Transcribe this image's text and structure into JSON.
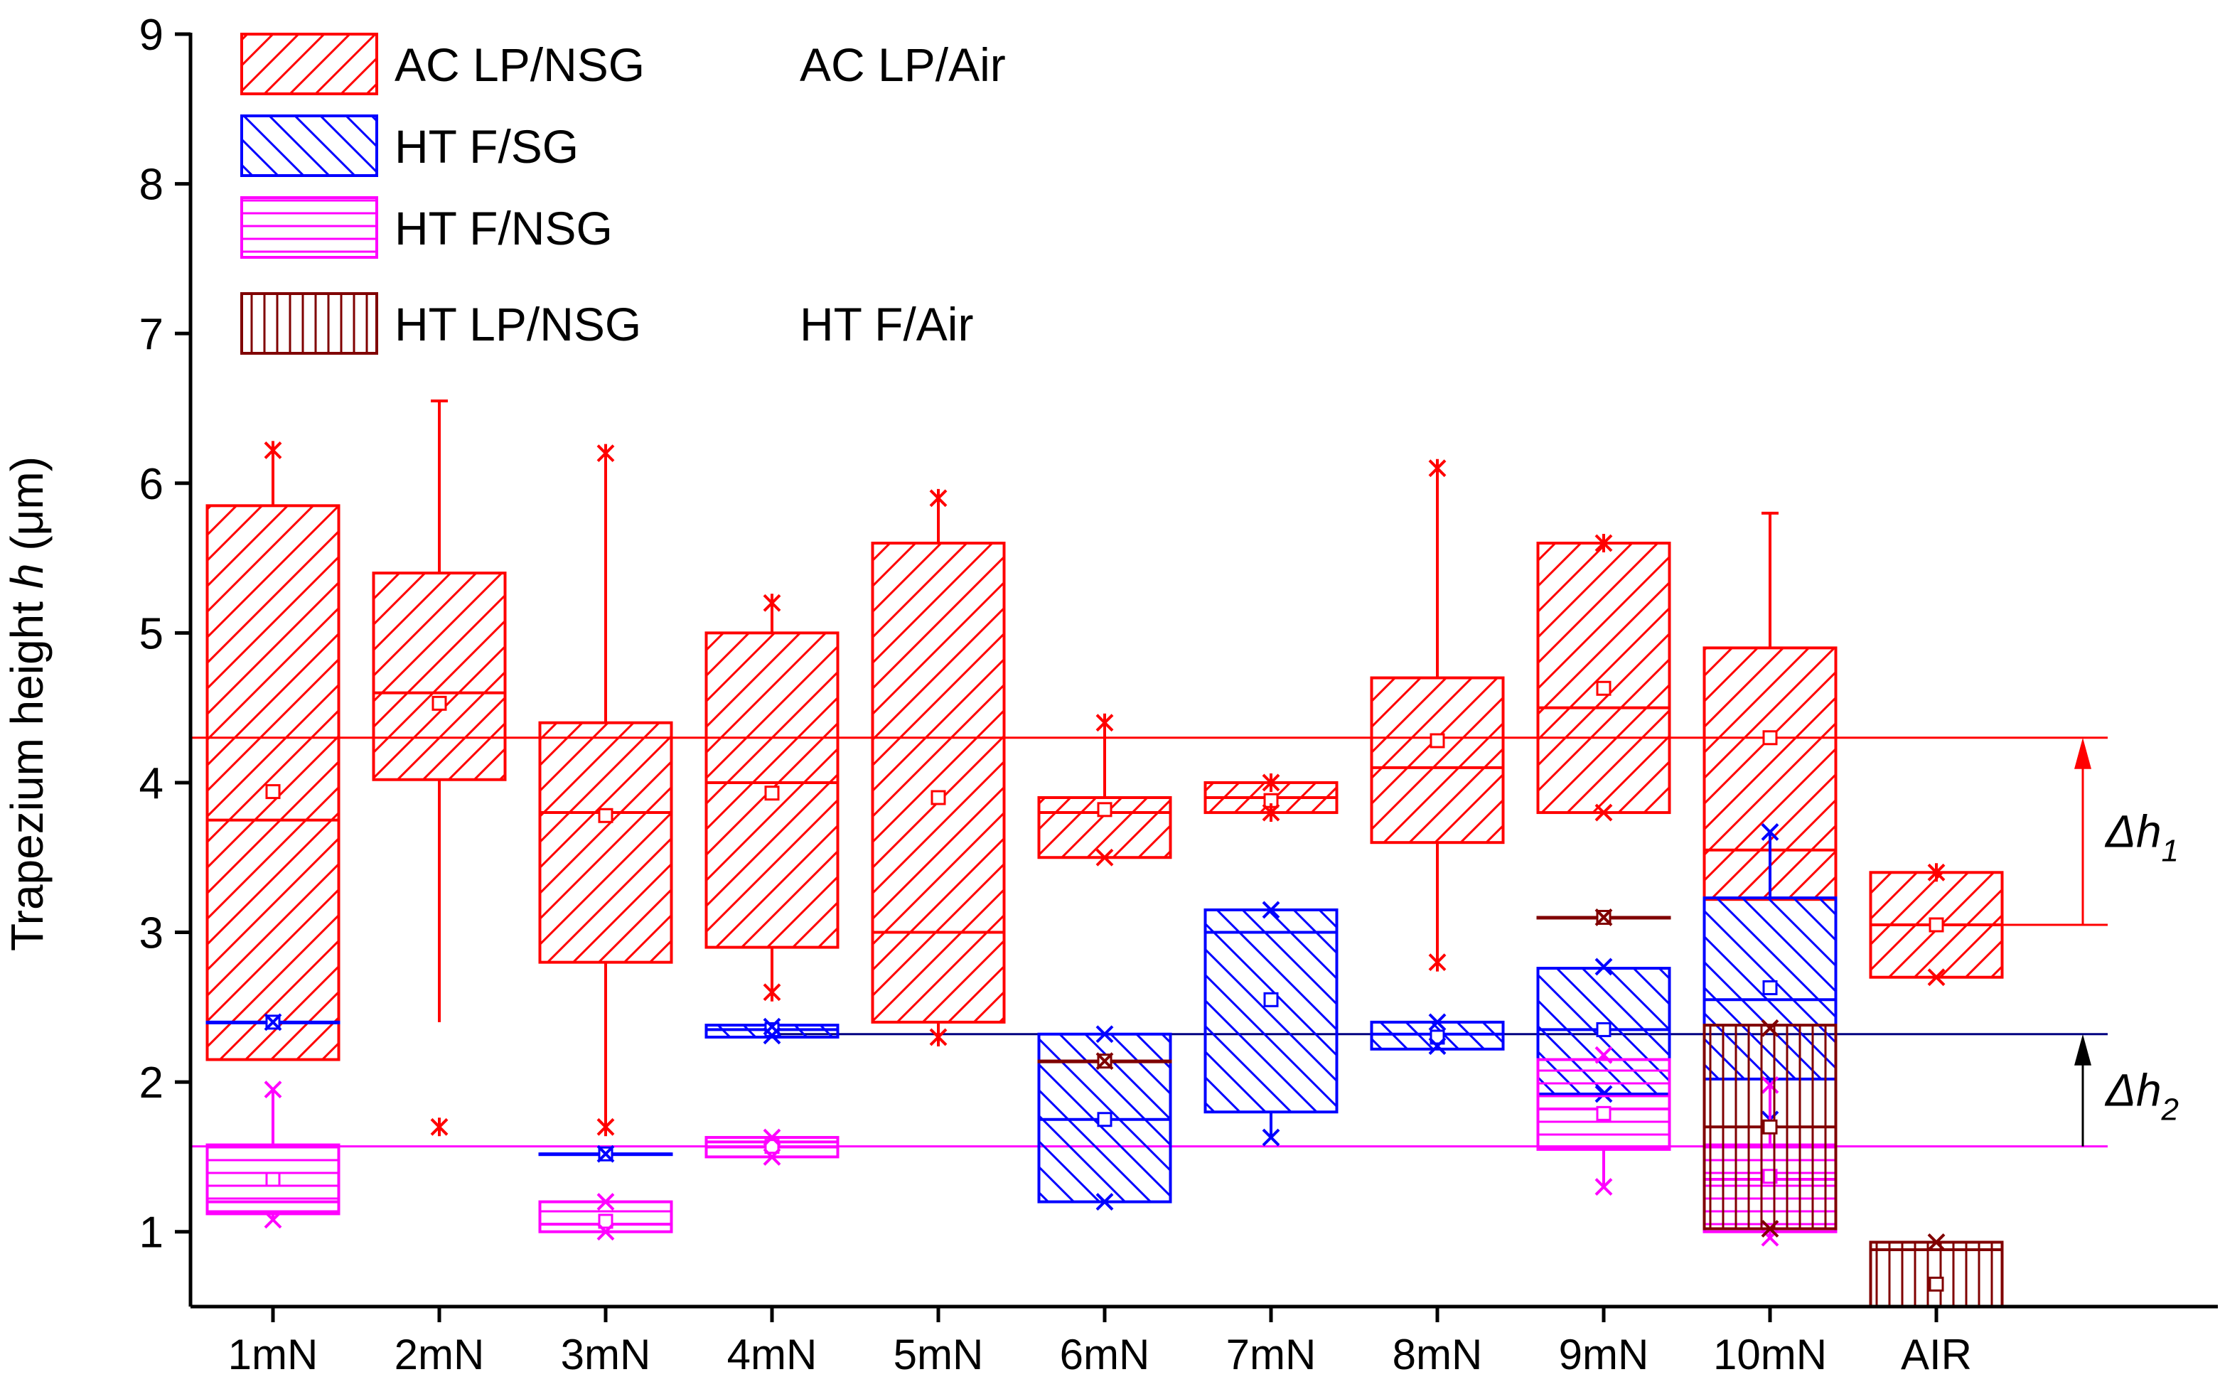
{
  "chart_data": {
    "type": "box",
    "title": "",
    "ylabel": {
      "main": "Trapezium height ",
      "var": "h",
      "unit": " (μm)"
    },
    "xlabel": "",
    "ylim": [
      0.5,
      9
    ],
    "yticks": [
      1,
      2,
      3,
      4,
      5,
      6,
      7,
      8,
      9
    ],
    "categories": [
      "1mN",
      "2mN",
      "3mN",
      "4mN",
      "5mN",
      "6mN",
      "7mN",
      "8mN",
      "9mN",
      "10mN",
      "AIR"
    ],
    "grid": false,
    "colors": {
      "ac_lp_nsg": "#ff0000",
      "ht_f_sg": "#0000ff",
      "ht_f_nsg": "#ff00ff",
      "ht_lp_nsg": "#800000",
      "ref_red": "#ff0000",
      "ref_blue": "#000080",
      "ref_magenta": "#ff00ff"
    },
    "legend": [
      {
        "label": "AC LP/NSG",
        "extra": "AC LP/Air",
        "pattern": "diag-up",
        "color": "#ff0000"
      },
      {
        "label": "HT F/SG",
        "extra": "",
        "pattern": "diag-down",
        "color": "#0000ff"
      },
      {
        "label": "HT F/NSG",
        "extra": "",
        "pattern": "horizontal",
        "color": "#ff00ff"
      },
      {
        "label": "HT LP/NSG",
        "extra": "HT F/Air",
        "pattern": "vertical",
        "color": "#800000"
      }
    ],
    "series": [
      {
        "id": "ac_lp_nsg",
        "pattern": "diag-up",
        "color": "#ff0000",
        "boxes": [
          {
            "cat": 0,
            "q1": 2.15,
            "median": 3.75,
            "q3": 5.85,
            "mean": 3.94,
            "whisker_low": 2.15,
            "whisker_high": 6.22,
            "max_mark": 6.22,
            "min_mark": null
          },
          {
            "cat": 1,
            "q1": 4.02,
            "median": 4.6,
            "q3": 5.4,
            "mean": 4.53,
            "whisker_low": 2.4,
            "whisker_high": 6.55,
            "max_mark": null,
            "min_mark": 1.7
          },
          {
            "cat": 2,
            "q1": 2.8,
            "median": 3.8,
            "q3": 4.4,
            "mean": 3.78,
            "whisker_low": 1.7,
            "whisker_high": 6.2,
            "max_mark": 6.2,
            "min_mark": 1.7
          },
          {
            "cat": 3,
            "q1": 2.9,
            "median": 4.0,
            "q3": 5.0,
            "mean": 3.93,
            "whisker_low": 2.6,
            "whisker_high": 5.2,
            "max_mark": 5.2,
            "min_mark": 2.6
          },
          {
            "cat": 4,
            "q1": 2.4,
            "median": 3.0,
            "q3": 5.6,
            "mean": 3.9,
            "whisker_low": 2.3,
            "whisker_high": 5.9,
            "max_mark": 5.9,
            "min_mark": 2.3
          },
          {
            "cat": 5,
            "q1": 3.5,
            "median": 3.8,
            "q3": 3.9,
            "mean": 3.82,
            "whisker_low": 3.5,
            "whisker_high": 4.4,
            "max_mark": 4.4,
            "min_mark": 3.5
          },
          {
            "cat": 6,
            "q1": 3.8,
            "median": 3.9,
            "q3": 4.0,
            "mean": 3.88,
            "whisker_low": 3.8,
            "whisker_high": 4.0,
            "max_mark": 4.0,
            "min_mark": 3.8
          },
          {
            "cat": 7,
            "q1": 3.6,
            "median": 4.1,
            "q3": 4.7,
            "mean": 4.28,
            "whisker_low": 2.8,
            "whisker_high": 6.1,
            "max_mark": 6.1,
            "min_mark": 2.8
          },
          {
            "cat": 8,
            "q1": 3.8,
            "median": 4.5,
            "q3": 5.6,
            "mean": 4.63,
            "whisker_low": 3.8,
            "whisker_high": 5.6,
            "max_mark": 5.6,
            "min_mark": 3.8
          },
          {
            "cat": 9,
            "q1": 3.22,
            "median": 3.55,
            "q3": 4.9,
            "mean": 4.3,
            "whisker_low": 3.22,
            "whisker_high": 5.8,
            "max_mark": null,
            "min_mark": null
          },
          {
            "cat": 10,
            "q1": 2.7,
            "median": 3.05,
            "q3": 3.4,
            "mean": 3.05,
            "whisker_low": 2.7,
            "whisker_high": 3.4,
            "max_mark": 3.4,
            "min_mark": 2.7
          }
        ]
      },
      {
        "id": "ht_f_sg",
        "pattern": "diag-down",
        "color": "#0000ff",
        "boxes": [
          {
            "cat": 0,
            "q1": 2.4,
            "median": 2.4,
            "q3": 2.4,
            "mean": 2.4,
            "whisker_low": 2.4,
            "whisker_high": 2.4,
            "max_mark": 2.4,
            "min_mark": null
          },
          {
            "cat": 2,
            "q1": 1.52,
            "median": 1.52,
            "q3": 1.52,
            "mean": 1.52,
            "whisker_low": 1.52,
            "whisker_high": 1.52,
            "max_mark": 1.52,
            "min_mark": null
          },
          {
            "cat": 3,
            "q1": 2.3,
            "median": 2.35,
            "q3": 2.38,
            "mean": 2.35,
            "whisker_low": 2.3,
            "whisker_high": 2.38,
            "max_mark": 2.37,
            "min_mark": 2.31
          },
          {
            "cat": 5,
            "q1": 1.2,
            "median": 1.75,
            "q3": 2.32,
            "mean": 1.75,
            "whisker_low": 1.2,
            "whisker_high": 2.32,
            "max_mark": 2.32,
            "min_mark": 1.2
          },
          {
            "cat": 6,
            "q1": 1.8,
            "median": 3.0,
            "q3": 3.15,
            "mean": 2.55,
            "whisker_low": 1.63,
            "whisker_high": 3.15,
            "max_mark": 3.15,
            "min_mark": 1.63
          },
          {
            "cat": 7,
            "q1": 2.22,
            "median": 2.32,
            "q3": 2.4,
            "mean": 2.3,
            "whisker_low": 2.22,
            "whisker_high": 2.4,
            "max_mark": 2.4,
            "min_mark": 2.24
          },
          {
            "cat": 8,
            "q1": 1.92,
            "median": 2.35,
            "q3": 2.76,
            "mean": 2.35,
            "whisker_low": 1.92,
            "whisker_high": 2.76,
            "max_mark": 2.77,
            "min_mark": 1.92
          },
          {
            "cat": 9,
            "q1": 2.02,
            "median": 2.55,
            "q3": 3.23,
            "mean": 2.63,
            "whisker_low": 1.75,
            "whisker_high": 3.67,
            "max_mark": 3.67,
            "min_mark": 1.75
          }
        ]
      },
      {
        "id": "ht_f_nsg",
        "pattern": "horizontal",
        "color": "#ff00ff",
        "boxes": [
          {
            "cat": 0,
            "q1": 1.12,
            "median": 1.2,
            "q3": 1.58,
            "mean": 1.35,
            "whisker_low": 1.08,
            "whisker_high": 1.95,
            "max_mark": 1.95,
            "min_mark": 1.08
          },
          {
            "cat": 2,
            "q1": 1.0,
            "median": 1.05,
            "q3": 1.2,
            "mean": 1.07,
            "whisker_low": 1.0,
            "whisker_high": 1.2,
            "max_mark": 1.2,
            "min_mark": 1.0
          },
          {
            "cat": 3,
            "q1": 1.5,
            "median": 1.6,
            "q3": 1.63,
            "mean": 1.57,
            "whisker_low": 1.5,
            "whisker_high": 1.63,
            "max_mark": 1.63,
            "min_mark": 1.5
          },
          {
            "cat": 8,
            "q1": 1.55,
            "median": 1.82,
            "q3": 2.15,
            "mean": 1.79,
            "whisker_low": 1.3,
            "whisker_high": 2.18,
            "max_mark": 2.18,
            "min_mark": 1.3
          },
          {
            "cat": 9,
            "q1": 1.0,
            "median": 1.35,
            "q3": 1.58,
            "mean": 1.37,
            "whisker_low": 0.96,
            "whisker_high": 1.98,
            "max_mark": 1.98,
            "min_mark": 0.96
          }
        ]
      },
      {
        "id": "ht_lp_nsg",
        "pattern": "vertical",
        "color": "#800000",
        "boxes": [
          {
            "cat": 5,
            "q1": 2.14,
            "median": 2.14,
            "q3": 2.14,
            "mean": 2.14,
            "whisker_low": 2.14,
            "whisker_high": 2.14,
            "max_mark": 2.14,
            "min_mark": null
          },
          {
            "cat": 8,
            "q1": 3.1,
            "median": 3.1,
            "q3": 3.1,
            "mean": 3.1,
            "whisker_low": 3.1,
            "whisker_high": 3.1,
            "max_mark": 3.1,
            "min_mark": null
          },
          {
            "cat": 9,
            "q1": 1.02,
            "median": 1.7,
            "q3": 2.38,
            "mean": 1.7,
            "whisker_low": 1.02,
            "whisker_high": 2.38,
            "max_mark": 2.36,
            "min_mark": 1.02
          },
          {
            "cat": 10,
            "q1": 0.5,
            "median": 0.88,
            "q3": 0.93,
            "mean": 0.65,
            "whisker_low": 0.5,
            "whisker_high": 0.93,
            "max_mark": 0.93,
            "min_mark": null
          }
        ]
      }
    ],
    "reference_lines": [
      {
        "y": 4.3,
        "color": "#ff0000"
      },
      {
        "y": 3.05,
        "color": "#ff0000",
        "from_cat": 10
      },
      {
        "y": 2.32,
        "color": "#000080",
        "from_cat": 3
      },
      {
        "y": 1.57,
        "color": "#ff00ff"
      }
    ],
    "annotations": [
      {
        "label": "Δh",
        "sub": "1",
        "color": "#ff0000",
        "from": 3.05,
        "to": 4.3
      },
      {
        "label": "Δh",
        "sub": "2",
        "color": "#000000",
        "from": 1.57,
        "to": 2.32
      }
    ]
  }
}
